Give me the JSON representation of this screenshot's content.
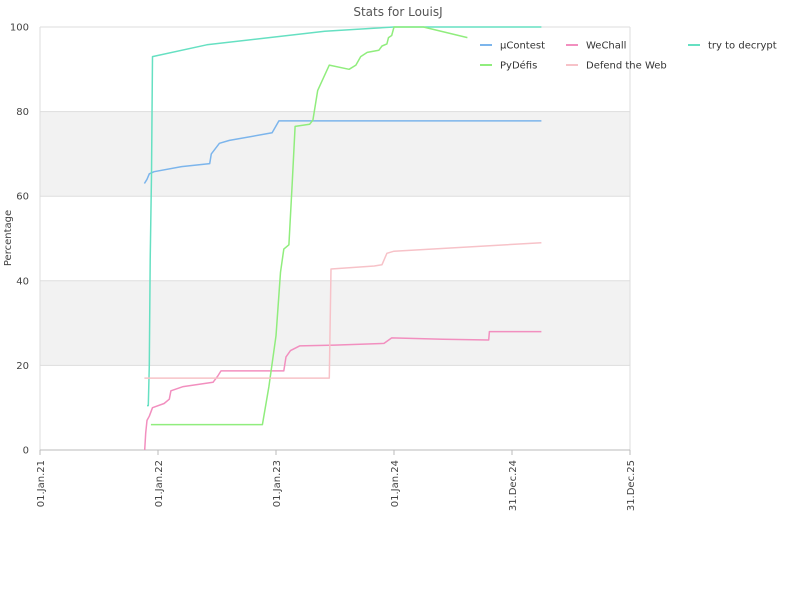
{
  "chart_data": {
    "type": "line",
    "title": "Stats for LouisJ",
    "xlabel": "",
    "ylabel": "Percentage",
    "xlim": [
      "2021-01-01",
      "2025-12-31"
    ],
    "ylim": [
      0,
      100
    ],
    "y_ticks": [
      "0",
      "20",
      "40",
      "60",
      "80",
      "100"
    ],
    "x_ticks": [
      {
        "label": "01.Jan.21",
        "date": "2021-01-01"
      },
      {
        "label": "01.Jan.22",
        "date": "2022-01-01"
      },
      {
        "label": "01.Jan.23",
        "date": "2023-01-01"
      },
      {
        "label": "01.Jan.24",
        "date": "2024-01-01"
      },
      {
        "label": "31.Dec.24",
        "date": "2024-12-31"
      },
      {
        "label": "31.Dec.25",
        "date": "2025-12-31"
      }
    ],
    "grid": true,
    "legend_position": "top-right",
    "series": [
      {
        "name": "µContest",
        "color": "#7cb5ec",
        "points": [
          [
            "2021-11-20",
            63
          ],
          [
            "2021-11-28",
            64
          ],
          [
            "2021-12-05",
            65.3
          ],
          [
            "2021-12-20",
            65.8
          ],
          [
            "2022-03-15",
            67
          ],
          [
            "2022-06-10",
            67.7
          ],
          [
            "2022-06-15",
            70
          ],
          [
            "2022-07-10",
            72.5
          ],
          [
            "2022-08-10",
            73.2
          ],
          [
            "2022-12-20",
            75
          ],
          [
            "2023-01-10",
            77.8
          ],
          [
            "2023-06-01",
            77.8
          ],
          [
            "2024-06-01",
            77.8
          ],
          [
            "2025-04-01",
            77.8
          ]
        ]
      },
      {
        "name": "WeChall",
        "color": "#f28fbf",
        "points": [
          [
            "2021-11-21",
            0
          ],
          [
            "2021-11-24",
            4
          ],
          [
            "2021-11-28",
            7
          ],
          [
            "2021-12-05",
            8
          ],
          [
            "2021-12-15",
            10
          ],
          [
            "2022-01-20",
            11
          ],
          [
            "2022-02-05",
            12
          ],
          [
            "2022-02-10",
            14
          ],
          [
            "2022-03-20",
            15
          ],
          [
            "2022-06-20",
            16
          ],
          [
            "2022-07-05",
            17.5
          ],
          [
            "2022-07-15",
            18.7
          ],
          [
            "2023-01-25",
            18.7
          ],
          [
            "2023-02-01",
            22
          ],
          [
            "2023-02-15",
            23.5
          ],
          [
            "2023-03-15",
            24.6
          ],
          [
            "2023-07-01",
            24.8
          ],
          [
            "2023-12-01",
            25.2
          ],
          [
            "2023-12-25",
            26.5
          ],
          [
            "2024-06-01",
            26.2
          ],
          [
            "2024-10-20",
            26
          ],
          [
            "2024-10-22",
            28
          ],
          [
            "2025-03-01",
            28
          ],
          [
            "2025-04-01",
            28
          ]
        ]
      },
      {
        "name": "try to decrypt",
        "color": "#66e0c2",
        "points": [
          [
            "2021-11-28",
            10.5
          ],
          [
            "2021-12-02",
            10.5
          ],
          [
            "2021-12-05",
            20
          ],
          [
            "2021-12-08",
            45
          ],
          [
            "2021-12-12",
            65
          ],
          [
            "2021-12-15",
            93
          ],
          [
            "2022-06-01",
            95.8
          ],
          [
            "2022-12-01",
            97.4
          ],
          [
            "2023-06-01",
            99
          ],
          [
            "2024-01-01",
            100
          ],
          [
            "2024-06-01",
            100
          ],
          [
            "2025-04-01",
            100
          ]
        ]
      },
      {
        "name": "PyDéfis",
        "color": "#90ed7d",
        "points": [
          [
            "2021-12-10",
            6
          ],
          [
            "2022-11-20",
            6
          ],
          [
            "2022-12-10",
            15
          ],
          [
            "2023-01-01",
            27
          ],
          [
            "2023-01-15",
            42
          ],
          [
            "2023-01-25",
            47.5
          ],
          [
            "2023-02-10",
            48.5
          ],
          [
            "2023-02-20",
            63
          ],
          [
            "2023-03-01",
            76.5
          ],
          [
            "2023-04-15",
            77
          ],
          [
            "2023-04-25",
            78
          ],
          [
            "2023-05-10",
            85
          ],
          [
            "2023-06-15",
            91
          ],
          [
            "2023-08-15",
            90
          ],
          [
            "2023-09-05",
            91
          ],
          [
            "2023-09-20",
            93
          ],
          [
            "2023-10-10",
            94
          ],
          [
            "2023-11-15",
            94.5
          ],
          [
            "2023-11-25",
            95.5
          ],
          [
            "2023-12-10",
            96
          ],
          [
            "2023-12-15",
            97.5
          ],
          [
            "2023-12-25",
            98
          ],
          [
            "2024-01-01",
            100
          ],
          [
            "2024-04-01",
            100
          ],
          [
            "2024-08-15",
            97.5
          ]
        ]
      },
      {
        "name": "Defend the Web",
        "color": "#f7c2c8",
        "points": [
          [
            "2021-11-20",
            17
          ],
          [
            "2022-06-01",
            17
          ],
          [
            "2023-06-15",
            17
          ],
          [
            "2023-06-20",
            42.8
          ],
          [
            "2023-11-01",
            43.5
          ],
          [
            "2023-11-25",
            43.8
          ],
          [
            "2023-12-10",
            46.5
          ],
          [
            "2024-01-01",
            47
          ],
          [
            "2025-04-01",
            49
          ]
        ]
      }
    ]
  }
}
